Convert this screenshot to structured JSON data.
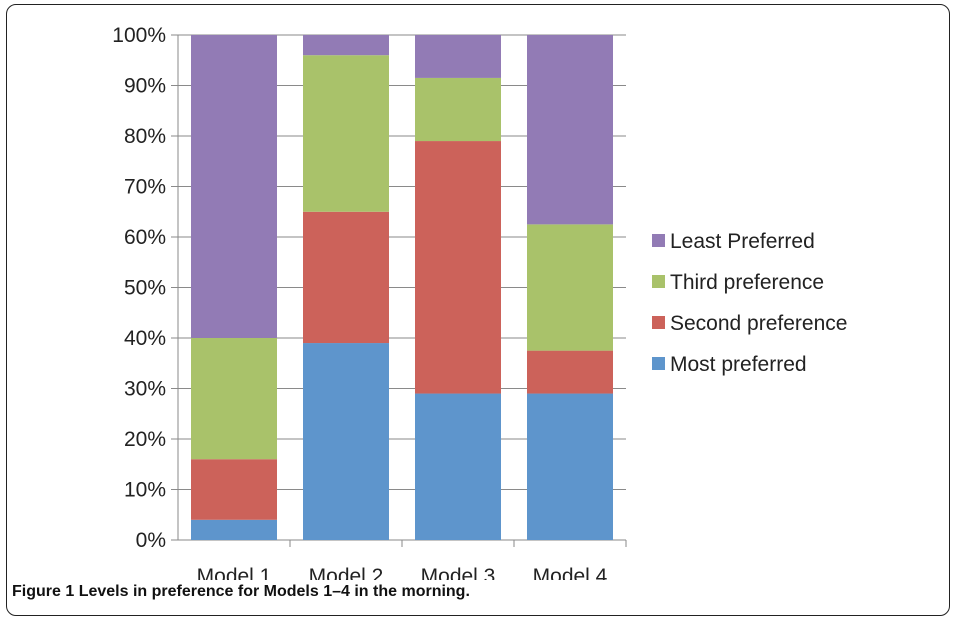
{
  "chart_data": {
    "type": "bar",
    "stacked": true,
    "categories": [
      "Model 1",
      "Model 2",
      "Model 3",
      "Model 4"
    ],
    "series": [
      {
        "name": "Most preferred",
        "color": "#5e95cc",
        "values": [
          4,
          39,
          29,
          29
        ]
      },
      {
        "name": "Second preference",
        "color": "#cc625a",
        "values": [
          12,
          26,
          50,
          8.5
        ]
      },
      {
        "name": "Third preference",
        "color": "#a9c26a",
        "values": [
          24,
          31,
          12.5,
          25
        ]
      },
      {
        "name": "Least Preferred",
        "color": "#927bb5",
        "values": [
          60,
          4,
          8.5,
          37.5
        ]
      }
    ],
    "y_ticks": [
      "0%",
      "10%",
      "20%",
      "30%",
      "40%",
      "50%",
      "60%",
      "70%",
      "80%",
      "90%",
      "100%"
    ],
    "ylim": [
      0,
      100
    ],
    "grid": true,
    "legend": "right",
    "legend_order": [
      "Least Preferred",
      "Third preference",
      "Second preference",
      "Most preferred"
    ]
  },
  "caption": {
    "label": "Figure 1",
    "text": "Levels in preference for Models 1–4 in the morning."
  }
}
